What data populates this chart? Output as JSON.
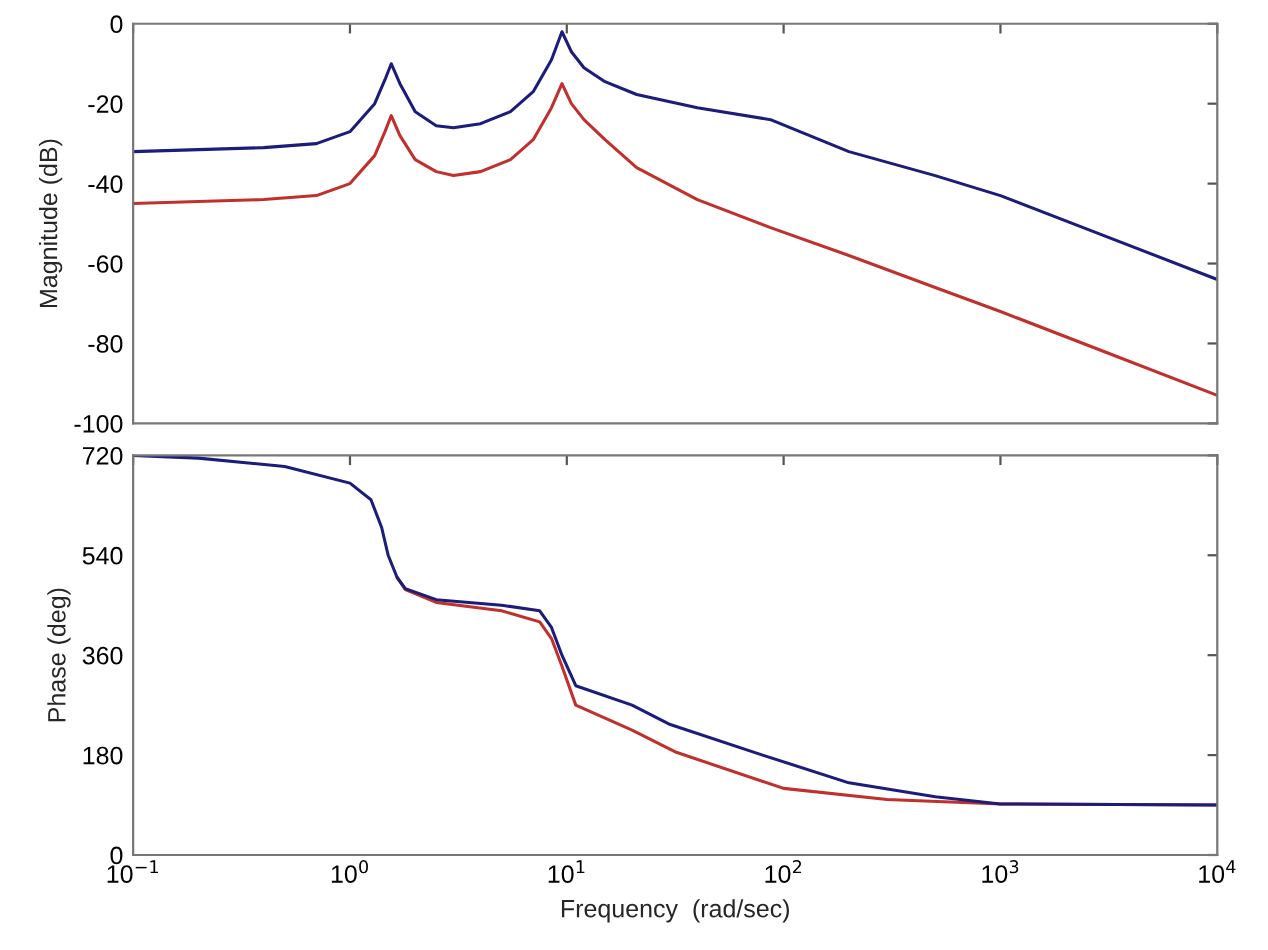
{
  "chart_data": [
    {
      "type": "line",
      "ylabel": "Magnitude (dB)",
      "log": "x",
      "xlim": [
        0.1,
        10000
      ],
      "ylim": [
        -100,
        0
      ],
      "yticks": [
        -100,
        -80,
        -60,
        -40,
        -20,
        0
      ],
      "xticks": [
        {
          "value": 0.1,
          "label": null
        },
        {
          "value": 1,
          "label": null
        },
        {
          "value": 10,
          "label": null
        },
        {
          "value": 100,
          "label": null
        },
        {
          "value": 1000,
          "label": null
        },
        {
          "value": 10000,
          "label": null
        }
      ],
      "tick_labels": "y",
      "grid": false,
      "legend": false,
      "series": [
        {
          "color": "#1c1c7a",
          "x": [
            0.1,
            0.2,
            0.4,
            0.7,
            1.0,
            1.3,
            1.45,
            1.55,
            1.7,
            2.0,
            2.5,
            3.0,
            4.0,
            5.5,
            7.0,
            8.5,
            9.5,
            10.5,
            12,
            15,
            21,
            40,
            87,
            200,
            500,
            1000,
            3000,
            10000
          ],
          "values": [
            -32,
            -31.5,
            -31,
            -30,
            -27,
            -20,
            -14,
            -10,
            -15,
            -22,
            -25.5,
            -26,
            -25,
            -22,
            -17,
            -9,
            -2,
            -7,
            -11,
            -14.5,
            -17.7,
            -21,
            -24,
            -32,
            -38,
            -43,
            -53,
            -64
          ]
        },
        {
          "color": "#c0302c",
          "x": [
            0.1,
            0.2,
            0.4,
            0.7,
            1.0,
            1.3,
            1.45,
            1.55,
            1.7,
            2.0,
            2.5,
            3.0,
            4.0,
            5.5,
            7.0,
            8.5,
            9.5,
            10.5,
            12,
            15,
            21,
            40,
            87,
            200,
            500,
            1000,
            3000,
            10000
          ],
          "values": [
            -45,
            -44.5,
            -44,
            -43,
            -40,
            -33,
            -27,
            -23,
            -28,
            -34,
            -37,
            -38,
            -37,
            -34,
            -29,
            -21,
            -15,
            -20,
            -24,
            -29,
            -36,
            -44,
            -51,
            -58,
            -66,
            -72,
            -82,
            -93
          ]
        }
      ]
    },
    {
      "type": "line",
      "ylabel": "Phase (deg)",
      "xlabel": "Frequency  (rad/sec)",
      "log": "x",
      "xlim": [
        0.1,
        10000
      ],
      "ylim": [
        0,
        720
      ],
      "yticks": [
        0,
        180,
        360,
        540,
        720
      ],
      "xticks": [
        {
          "value": 0.1,
          "label": "10$^{−1}$"
        },
        {
          "value": 1,
          "label": "10$^{0}$"
        },
        {
          "value": 10,
          "label": "10$^{1}$"
        },
        {
          "value": 100,
          "label": "10$^{2}$"
        },
        {
          "value": 1000,
          "label": "10$^{3}$"
        },
        {
          "value": 10000,
          "label": "10$^{4}$"
        }
      ],
      "grid": false,
      "legend": false,
      "series": [
        {
          "color": "#c0302c",
          "x": [
            1.65,
            1.8,
            2.5,
            5.0,
            7.5,
            8.5,
            9.5,
            11,
            20,
            32,
            100,
            300,
            1000,
            10000
          ],
          "values": [
            500,
            478,
            455,
            440,
            420,
            390,
            340,
            270,
            225,
            185,
            120,
            100,
            92,
            90
          ]
        },
        {
          "color": "#1c1c7a",
          "x": [
            0.1,
            0.2,
            0.5,
            1.0,
            1.25,
            1.4,
            1.5,
            1.65,
            1.8,
            2.5,
            5.0,
            7.5,
            8.5,
            9.5,
            11,
            20,
            30,
            80,
            200,
            500,
            1000,
            10000
          ],
          "values": [
            720,
            715,
            700,
            670,
            640,
            590,
            540,
            500,
            480,
            460,
            450,
            440,
            410,
            360,
            305,
            270,
            235,
            180,
            130,
            105,
            92,
            90
          ]
        }
      ]
    }
  ]
}
